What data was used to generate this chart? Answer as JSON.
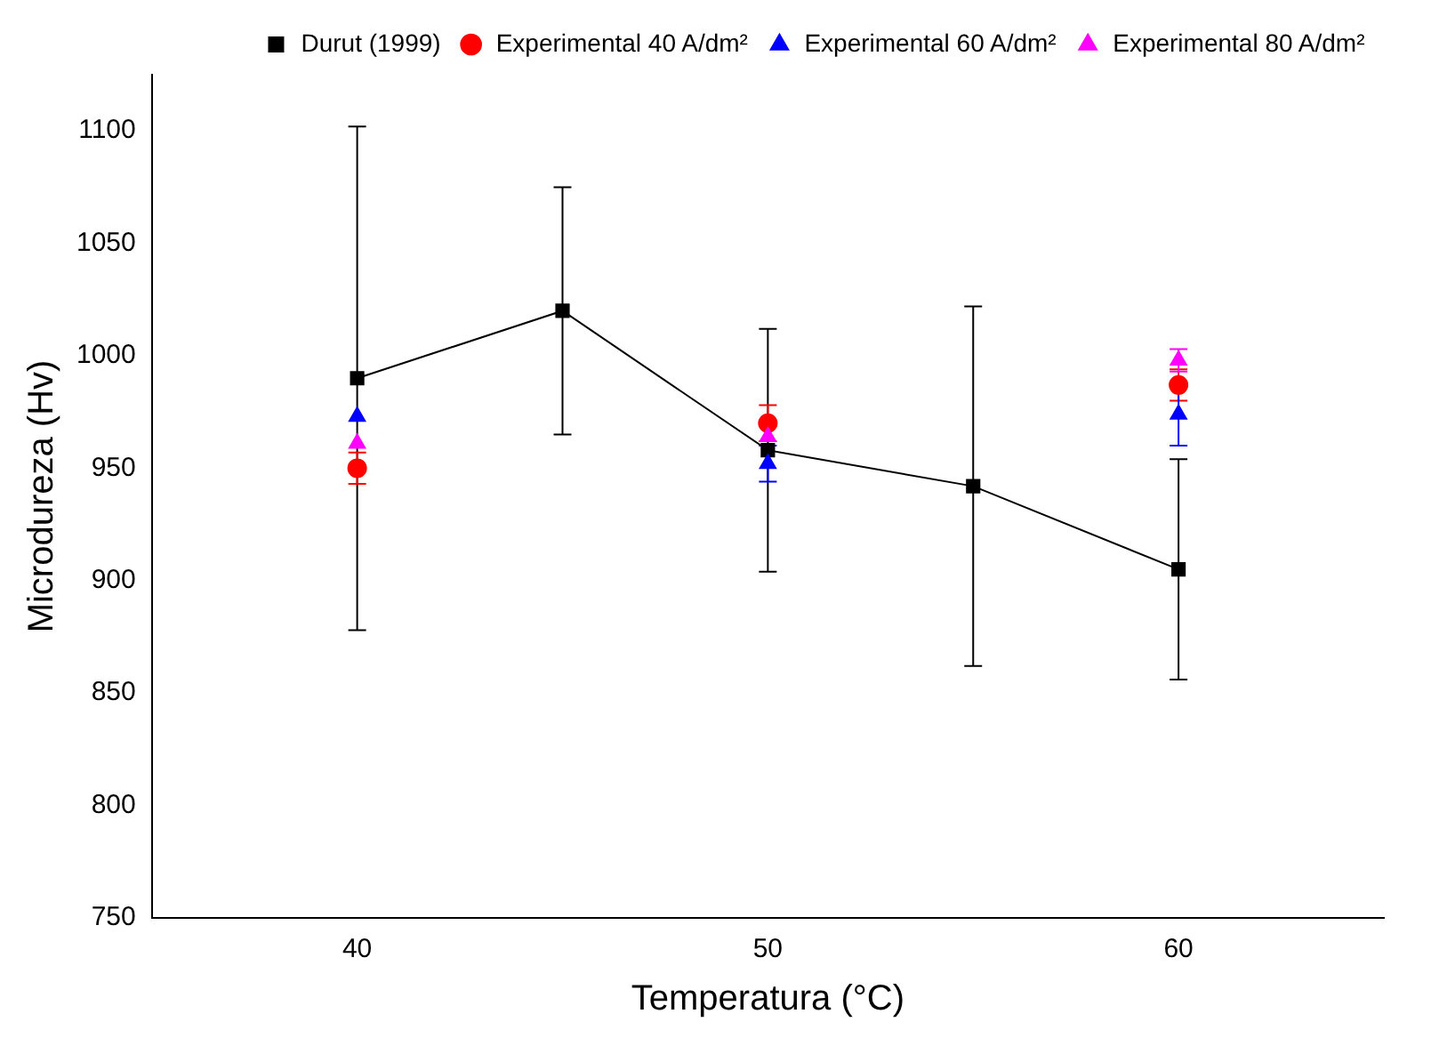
{
  "chart_data": {
    "type": "line",
    "xlabel": "Temperatura (°C)",
    "ylabel": "Microdureza (Hv)",
    "xlim": [
      35,
      65
    ],
    "xticks": [
      40,
      50,
      60
    ],
    "ylim": [
      750,
      1125
    ],
    "yticks": [
      750,
      800,
      850,
      900,
      950,
      1000,
      1050,
      1100
    ],
    "grid": false,
    "legend": "top right",
    "series": [
      {
        "name": "Durut (1999)",
        "type": "line",
        "marker": "square",
        "color": "#000000",
        "x": [
          40,
          45,
          50,
          55,
          60
        ],
        "values": [
          990,
          1020,
          958,
          942,
          905
        ],
        "errors": [
          112,
          55,
          54,
          80,
          49
        ]
      },
      {
        "name": "Experimental 40 A/dm²",
        "type": "scatter",
        "marker": "circle",
        "color": "#ff0000",
        "x": [
          40,
          50,
          60
        ],
        "values": [
          950,
          970,
          987
        ],
        "errors": [
          7,
          8,
          7
        ]
      },
      {
        "name": "Experimental 60 A/dm²",
        "type": "scatter",
        "marker": "triangle",
        "color": "#0000ff",
        "x": [
          40,
          50,
          60
        ],
        "values": [
          973,
          952,
          974
        ],
        "errors": [
          null,
          8,
          14
        ]
      },
      {
        "name": "Experimental 80 A/dm²",
        "type": "scatter",
        "marker": "triangle",
        "color": "#ff00ff",
        "x": [
          40,
          50,
          60
        ],
        "values": [
          961,
          964,
          998
        ],
        "errors": [
          null,
          null,
          5
        ]
      }
    ]
  }
}
